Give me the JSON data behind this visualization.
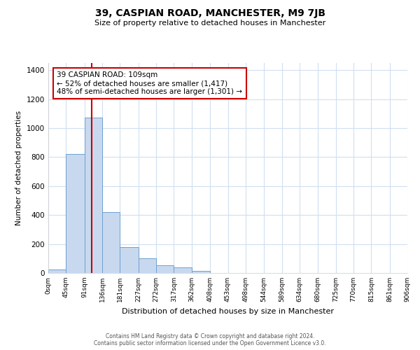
{
  "title": "39, CASPIAN ROAD, MANCHESTER, M9 7JB",
  "subtitle": "Size of property relative to detached houses in Manchester",
  "xlabel": "Distribution of detached houses by size in Manchester",
  "ylabel": "Number of detached properties",
  "bar_color": "#c8d9ef",
  "bar_edge_color": "#6fa0d0",
  "vline_color": "#cc0000",
  "vline_x": 109,
  "annotation_title": "39 CASPIAN ROAD: 109sqm",
  "annotation_line1": "← 52% of detached houses are smaller (1,417)",
  "annotation_line2": "48% of semi-detached houses are larger (1,301) →",
  "bin_edges": [
    0,
    45,
    91,
    136,
    181,
    227,
    272,
    317,
    362,
    408,
    453,
    498,
    544,
    589,
    634,
    680,
    725,
    770,
    815,
    861,
    906
  ],
  "bin_heights": [
    25,
    820,
    1075,
    420,
    180,
    100,
    55,
    38,
    15,
    2,
    0,
    0,
    0,
    0,
    0,
    0,
    0,
    0,
    0,
    0
  ],
  "ylim": [
    0,
    1450
  ],
  "yticks": [
    0,
    200,
    400,
    600,
    800,
    1000,
    1200,
    1400
  ],
  "tick_labels": [
    "0sqm",
    "45sqm",
    "91sqm",
    "136sqm",
    "181sqm",
    "227sqm",
    "272sqm",
    "317sqm",
    "362sqm",
    "408sqm",
    "453sqm",
    "498sqm",
    "544sqm",
    "589sqm",
    "634sqm",
    "680sqm",
    "725sqm",
    "770sqm",
    "815sqm",
    "861sqm",
    "906sqm"
  ],
  "footer_line1": "Contains HM Land Registry data © Crown copyright and database right 2024.",
  "footer_line2": "Contains public sector information licensed under the Open Government Licence v3.0.",
  "box_facecolor": "#ffffff",
  "box_edgecolor": "#cc0000",
  "grid_color": "#d0dff0",
  "background_color": "#ffffff"
}
